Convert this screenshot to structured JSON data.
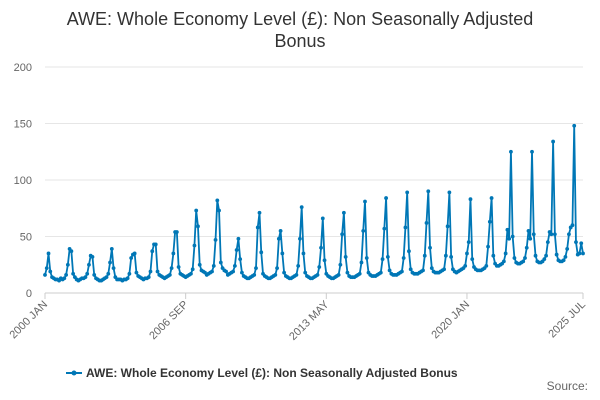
{
  "chart_data": {
    "type": "line",
    "title_line1": "AWE: Whole Economy Level (£): Non Seasonally Adjusted",
    "title_line2": "Bonus",
    "xlabel": "",
    "ylabel": "",
    "ylim": [
      0,
      200
    ],
    "yticks": [
      0,
      50,
      100,
      150,
      200
    ],
    "xtick_labels": [
      "2000 JAN",
      "2006 SEP",
      "2013 MAY",
      "2020 JAN",
      "2025 JUL"
    ],
    "xtick_index": [
      0,
      80,
      160,
      240,
      306
    ],
    "x_start": "2000 JAN",
    "x_end": "2025 JUL",
    "grid": true,
    "legend_position": "bottom",
    "source": "Source:",
    "series": [
      {
        "name": "AWE: Whole Economy Level (£): Non Seasonally Adjusted Bonus",
        "color": "#0077b6",
        "values": [
          16,
          22,
          35,
          19,
          14,
          13,
          12,
          12,
          11,
          13,
          12,
          13,
          16,
          25,
          39,
          37,
          17,
          14,
          12,
          11,
          12,
          13,
          13,
          14,
          17,
          25,
          33,
          32,
          16,
          13,
          12,
          11,
          11,
          12,
          13,
          14,
          17,
          27,
          39,
          22,
          14,
          12,
          12,
          12,
          11,
          12,
          12,
          13,
          17,
          31,
          34,
          35,
          18,
          15,
          14,
          13,
          12,
          13,
          13,
          14,
          19,
          37,
          43,
          43,
          19,
          16,
          15,
          14,
          13,
          14,
          15,
          16,
          22,
          35,
          54,
          54,
          23,
          17,
          16,
          15,
          14,
          15,
          16,
          17,
          21,
          42,
          73,
          59,
          25,
          20,
          19,
          18,
          16,
          17,
          18,
          19,
          24,
          47,
          82,
          73,
          27,
          22,
          20,
          19,
          16,
          17,
          18,
          19,
          24,
          38,
          48,
          30,
          18,
          15,
          14,
          13,
          13,
          14,
          15,
          16,
          22,
          58,
          71,
          36,
          17,
          15,
          14,
          13,
          13,
          14,
          15,
          16,
          22,
          48,
          55,
          35,
          18,
          15,
          14,
          13,
          13,
          14,
          15,
          16,
          24,
          48,
          76,
          35,
          18,
          15,
          14,
          13,
          13,
          14,
          15,
          16,
          23,
          40,
          66,
          29,
          17,
          15,
          14,
          13,
          13,
          14,
          15,
          16,
          25,
          52,
          71,
          32,
          18,
          15,
          14,
          14,
          14,
          15,
          16,
          17,
          27,
          55,
          81,
          31,
          18,
          16,
          15,
          15,
          15,
          16,
          17,
          18,
          30,
          57,
          84,
          32,
          20,
          17,
          16,
          16,
          16,
          17,
          18,
          19,
          31,
          58,
          89,
          37,
          21,
          18,
          17,
          17,
          17,
          18,
          19,
          20,
          33,
          62,
          90,
          40,
          22,
          19,
          18,
          18,
          18,
          19,
          20,
          21,
          33,
          59,
          89,
          32,
          21,
          19,
          18,
          19,
          20,
          21,
          22,
          24,
          35,
          45,
          83,
          30,
          23,
          21,
          20,
          20,
          20,
          21,
          22,
          24,
          41,
          63,
          84,
          33,
          26,
          24,
          24,
          25,
          26,
          28,
          35,
          56,
          48,
          125,
          50,
          31,
          27,
          26,
          26,
          27,
          28,
          31,
          40,
          55,
          48,
          125,
          52,
          33,
          28,
          27,
          27,
          28,
          30,
          33,
          45,
          54,
          52,
          134,
          52,
          34,
          29,
          28,
          28,
          29,
          32,
          39,
          52,
          58,
          60,
          148,
          45,
          34,
          35,
          44,
          35
        ]
      }
    ]
  }
}
